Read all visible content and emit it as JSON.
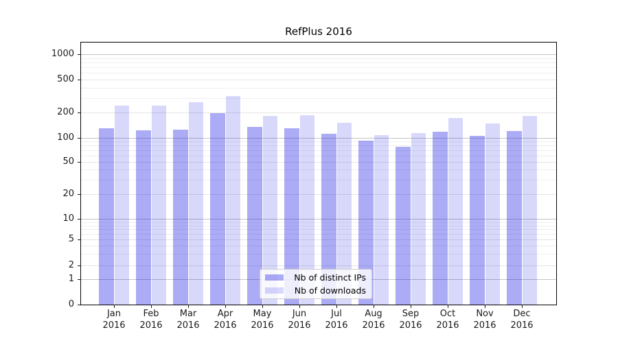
{
  "title": "RefPlus 2016",
  "y_axis": {
    "tick_labels": [
      "1000",
      "500",
      "200",
      "100",
      "50",
      "20",
      "10",
      "5",
      "2",
      "1",
      "0"
    ]
  },
  "x_axis": {
    "months": [
      "Jan",
      "Feb",
      "Mar",
      "Apr",
      "May",
      "Jun",
      "Jul",
      "Aug",
      "Sep",
      "Oct",
      "Nov",
      "Dec"
    ],
    "year_label": "2016"
  },
  "legend": {
    "items": [
      {
        "label": "Nb of distinct IPs",
        "color": "rgba(13,13,230,0.35)"
      },
      {
        "label": "Nb of downloads",
        "color": "rgba(13,13,230,0.16)"
      }
    ]
  },
  "chart_data": {
    "type": "bar",
    "title": "RefPlus 2016",
    "categories": [
      "Jan 2016",
      "Feb 2016",
      "Mar 2016",
      "Apr 2016",
      "May 2016",
      "Jun 2016",
      "Jul 2016",
      "Aug 2016",
      "Sep 2016",
      "Oct 2016",
      "Nov 2016",
      "Dec 2016"
    ],
    "series": [
      {
        "name": "Nb of distinct IPs",
        "values": [
          130,
          122,
          125,
          197,
          135,
          130,
          111,
          91,
          77,
          117,
          105,
          120
        ]
      },
      {
        "name": "Nb of downloads",
        "values": [
          240,
          240,
          263,
          316,
          182,
          186,
          151,
          107,
          113,
          172,
          147,
          181
        ]
      }
    ],
    "xlabel": "",
    "ylabel": "",
    "yscale": "symlog",
    "y_ticks": [
      0,
      1,
      2,
      5,
      10,
      20,
      50,
      100,
      200,
      500,
      1000
    ],
    "ylim": [
      0,
      1300
    ],
    "grid": "horizontal",
    "legend_position": "lower center",
    "bar_colors": {
      "distinct_ips": "rgba(13,13,230,0.35)",
      "downloads": "rgba(13,13,230,0.16)"
    }
  }
}
